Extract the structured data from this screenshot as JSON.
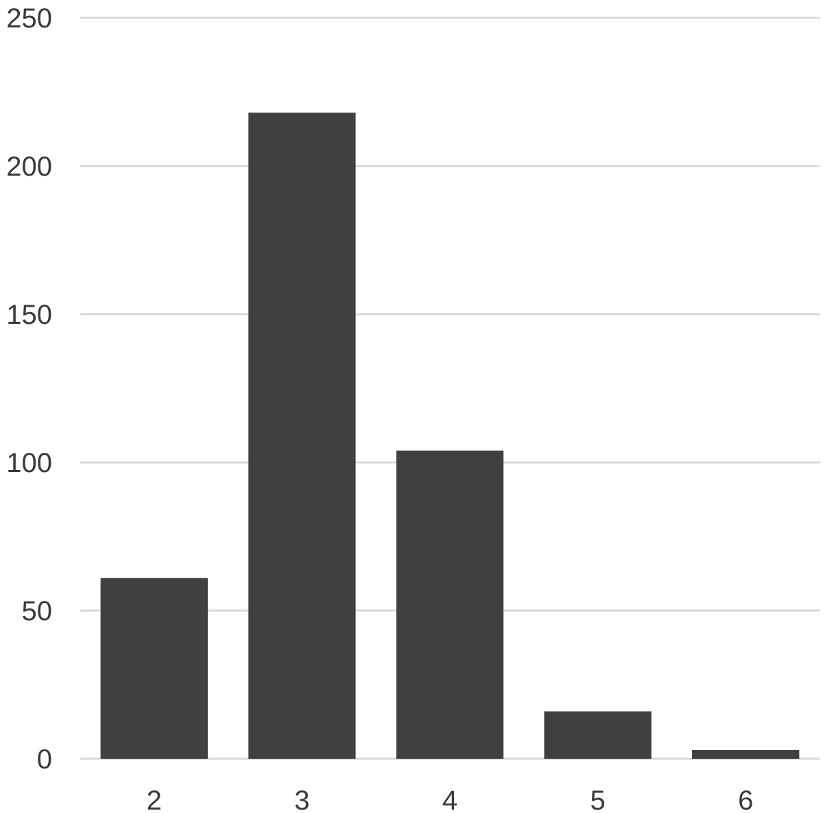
{
  "chart_data": {
    "type": "bar",
    "categories": [
      "2",
      "3",
      "4",
      "5",
      "6"
    ],
    "values": [
      61,
      218,
      104,
      16,
      3
    ],
    "ylim": [
      0,
      250
    ],
    "yticks": [
      0,
      50,
      100,
      150,
      200,
      250
    ],
    "ytick_labels": [
      "0",
      "50",
      "100",
      "150",
      "200",
      "250"
    ],
    "grid": true,
    "legend": "none",
    "colors": {
      "bar": "#404040",
      "grid": "#d9d9d9",
      "text": "#3a3a3a"
    }
  }
}
